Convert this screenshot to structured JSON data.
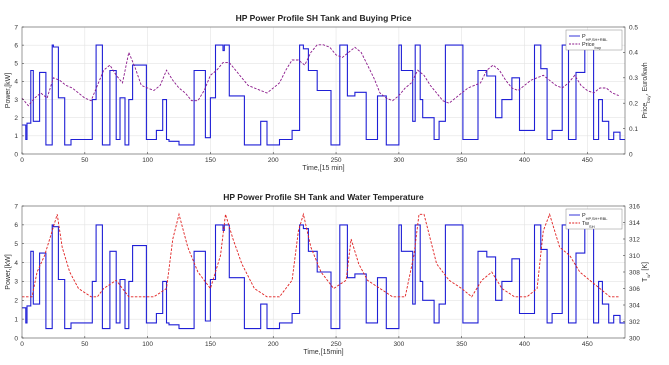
{
  "chart_data": [
    {
      "type": "line",
      "title": "HP Power Profile SH Tank and Buying Price",
      "xlabel": "Time,[15 min]",
      "ylabel_left": "Power,[kW]",
      "ylabel_right": "Price, Euro/kwh",
      "ylabel_right_sub": "buy",
      "xlim": [
        0,
        480
      ],
      "ylim_left": [
        0,
        7
      ],
      "ylim_right": [
        0,
        0.5
      ],
      "grid": true,
      "legend_position": "top-right",
      "x_ticks": [
        0,
        50,
        100,
        150,
        200,
        250,
        300,
        350,
        400,
        450
      ],
      "y_ticks_left": [
        0,
        1,
        2,
        3,
        4,
        5,
        6,
        7
      ],
      "y_ticks_right": [
        0,
        0.1,
        0.2,
        0.3,
        0.4,
        0.5
      ],
      "colors": {
        "power": "#1f1fd6",
        "price": "#8b1a8b"
      },
      "series": [
        {
          "name": "P",
          "name_sub": "HP,SH+RBL",
          "axis": "left",
          "style": "solid",
          "x": [
            0,
            3,
            4,
            7,
            9,
            14,
            19,
            24,
            25,
            29,
            34,
            39,
            47,
            49,
            55,
            56,
            59,
            64,
            70,
            75,
            78,
            82,
            85,
            88,
            99,
            107,
            112,
            115,
            117,
            125,
            137,
            146,
            150,
            154,
            160,
            161,
            165,
            177,
            190,
            195,
            205,
            215,
            221,
            224,
            228,
            235,
            246,
            253,
            259,
            265,
            274,
            283,
            290,
            300,
            302,
            311,
            313,
            317,
            319,
            328,
            332,
            337,
            351,
            363,
            370,
            377,
            382,
            390,
            396,
            408,
            413,
            418,
            422,
            430,
            435,
            441,
            448,
            455,
            459,
            462,
            467,
            471,
            476
          ],
          "values": [
            1.6,
            0.8,
            1.7,
            4.6,
            1.8,
            4.5,
            0.5,
            6.0,
            5.9,
            3.1,
            0.5,
            0.8,
            0.8,
            0.8,
            0.8,
            3.0,
            6.0,
            0.5,
            4.6,
            0.8,
            3.1,
            0.5,
            3.0,
            4.9,
            0.8,
            1.3,
            3.0,
            0.8,
            0.7,
            0.5,
            4.6,
            0.9,
            3.1,
            6.0,
            5.7,
            6.0,
            3.2,
            0.5,
            1.8,
            0.5,
            0.8,
            1.3,
            6.0,
            5.8,
            4.6,
            3.5,
            0.5,
            6.0,
            3.2,
            3.4,
            0.8,
            3.2,
            0.5,
            6.0,
            4.6,
            1.8,
            6.0,
            3.0,
            2.0,
            0.8,
            1.8,
            6.0,
            0.8,
            4.6,
            4.3,
            2.0,
            3.0,
            4.2,
            1.3,
            6.0,
            4.7,
            0.8,
            1.3,
            6.0,
            0.8,
            4.5,
            6.0,
            0.8,
            3.0,
            1.8,
            0.8,
            1.2,
            0.8
          ]
        },
        {
          "name": "Price",
          "name_sub": "buy",
          "axis": "right",
          "style": "dashed",
          "x": [
            0,
            5,
            10,
            15,
            20,
            25,
            30,
            35,
            40,
            45,
            50,
            55,
            60,
            65,
            70,
            75,
            80,
            85,
            90,
            95,
            100,
            105,
            110,
            115,
            120,
            125,
            130,
            135,
            140,
            145,
            150,
            155,
            160,
            165,
            170,
            175,
            180,
            185,
            190,
            195,
            200,
            205,
            210,
            215,
            220,
            225,
            230,
            235,
            240,
            245,
            250,
            255,
            260,
            265,
            270,
            275,
            280,
            285,
            290,
            295,
            300,
            305,
            310,
            315,
            320,
            325,
            330,
            335,
            340,
            345,
            350,
            355,
            360,
            365,
            370,
            375,
            380,
            385,
            390,
            395,
            400,
            405,
            410,
            415,
            420,
            425,
            430,
            435,
            440,
            445,
            450,
            455,
            460,
            465,
            470,
            475
          ],
          "values": [
            0.22,
            0.19,
            0.22,
            0.24,
            0.22,
            0.3,
            0.29,
            0.27,
            0.26,
            0.24,
            0.22,
            0.21,
            0.27,
            0.33,
            0.35,
            0.31,
            0.28,
            0.4,
            0.34,
            0.27,
            0.26,
            0.25,
            0.27,
            0.33,
            0.29,
            0.26,
            0.24,
            0.21,
            0.21,
            0.25,
            0.31,
            0.33,
            0.36,
            0.36,
            0.33,
            0.3,
            0.27,
            0.26,
            0.25,
            0.24,
            0.26,
            0.28,
            0.33,
            0.37,
            0.37,
            0.35,
            0.4,
            0.43,
            0.43,
            0.42,
            0.39,
            0.38,
            0.4,
            0.42,
            0.4,
            0.35,
            0.3,
            0.24,
            0.22,
            0.21,
            0.23,
            0.26,
            0.28,
            0.33,
            0.31,
            0.27,
            0.24,
            0.21,
            0.2,
            0.22,
            0.24,
            0.26,
            0.27,
            0.28,
            0.33,
            0.35,
            0.33,
            0.29,
            0.26,
            0.25,
            0.27,
            0.29,
            0.3,
            0.31,
            0.29,
            0.27,
            0.26,
            0.28,
            0.31,
            0.27,
            0.25,
            0.24,
            0.26,
            0.26,
            0.24,
            0.23
          ]
        }
      ]
    },
    {
      "type": "line",
      "title": "HP Power Profile SH Tank and Water Temperature",
      "xlabel": "Time,[15min]",
      "ylabel_left": "Power,[kW]",
      "ylabel_right": "T, [K]",
      "ylabel_right_sub": "w",
      "xlim": [
        0,
        480
      ],
      "ylim_left": [
        0,
        7
      ],
      "ylim_right": [
        300,
        316
      ],
      "grid": true,
      "legend_position": "top-right",
      "x_ticks": [
        0,
        50,
        100,
        150,
        200,
        250,
        300,
        350,
        400,
        450
      ],
      "y_ticks_left": [
        0,
        1,
        2,
        3,
        4,
        5,
        6,
        7
      ],
      "y_ticks_right": [
        300,
        302,
        304,
        306,
        308,
        310,
        312,
        314,
        316
      ],
      "colors": {
        "power": "#1f1fd6",
        "temperature": "#e02020"
      },
      "series": [
        {
          "name": "P",
          "name_sub": "HP,SH+RBL",
          "axis": "left",
          "style": "solid",
          "x": [
            0,
            3,
            4,
            7,
            9,
            14,
            19,
            24,
            25,
            29,
            34,
            39,
            47,
            49,
            55,
            56,
            59,
            64,
            70,
            75,
            78,
            82,
            85,
            88,
            99,
            107,
            112,
            115,
            117,
            125,
            137,
            146,
            150,
            154,
            160,
            161,
            165,
            177,
            190,
            195,
            205,
            215,
            221,
            224,
            228,
            235,
            246,
            253,
            259,
            265,
            274,
            283,
            290,
            300,
            302,
            311,
            313,
            317,
            319,
            328,
            332,
            337,
            351,
            363,
            370,
            377,
            382,
            390,
            396,
            408,
            413,
            418,
            422,
            430,
            435,
            441,
            448,
            455,
            459,
            462,
            467,
            471,
            476
          ],
          "values": [
            1.6,
            0.8,
            1.7,
            4.6,
            1.8,
            4.5,
            0.5,
            6.0,
            5.9,
            3.1,
            0.5,
            0.8,
            0.8,
            0.8,
            0.8,
            3.0,
            6.0,
            0.5,
            4.6,
            0.8,
            3.1,
            0.5,
            3.0,
            4.9,
            0.8,
            1.3,
            3.0,
            0.8,
            0.7,
            0.5,
            4.6,
            0.9,
            3.1,
            6.0,
            5.7,
            6.0,
            3.2,
            0.5,
            1.8,
            0.5,
            0.8,
            1.3,
            6.0,
            5.8,
            4.6,
            3.5,
            0.5,
            6.0,
            3.2,
            3.4,
            0.8,
            3.2,
            0.5,
            6.0,
            4.6,
            1.8,
            6.0,
            3.0,
            2.0,
            0.8,
            1.8,
            6.0,
            0.8,
            4.6,
            4.3,
            2.0,
            3.0,
            4.2,
            1.3,
            6.0,
            4.7,
            0.8,
            1.3,
            6.0,
            0.8,
            4.5,
            6.0,
            0.8,
            3.0,
            1.8,
            0.8,
            1.2,
            0.8
          ]
        },
        {
          "name": "Tw",
          "name_sub": "SH",
          "axis": "right",
          "style": "dashed",
          "x": [
            0,
            8,
            12,
            18,
            24,
            28,
            32,
            38,
            45,
            55,
            60,
            65,
            75,
            85,
            95,
            105,
            115,
            120,
            125,
            132,
            140,
            150,
            158,
            162,
            168,
            175,
            185,
            195,
            205,
            215,
            220,
            224,
            230,
            238,
            248,
            258,
            262,
            268,
            275,
            285,
            295,
            305,
            312,
            316,
            320,
            330,
            340,
            350,
            358,
            366,
            374,
            382,
            392,
            402,
            410,
            415,
            420,
            428,
            436,
            444,
            452,
            460,
            468,
            476
          ],
          "values": [
            305,
            305,
            308,
            310,
            313,
            315,
            311,
            308,
            306,
            305,
            305,
            306,
            307,
            305,
            305,
            305,
            306,
            312,
            315,
            311,
            308,
            306,
            310,
            315,
            312,
            309,
            306,
            305,
            305,
            307,
            313,
            315,
            311,
            308,
            306,
            307,
            312,
            309,
            307,
            306,
            305,
            305,
            310,
            315,
            315,
            309,
            307,
            306,
            305,
            307,
            308,
            306,
            305,
            305,
            306,
            313,
            315,
            311,
            310,
            308,
            307,
            306,
            305,
            305
          ]
        }
      ]
    }
  ]
}
